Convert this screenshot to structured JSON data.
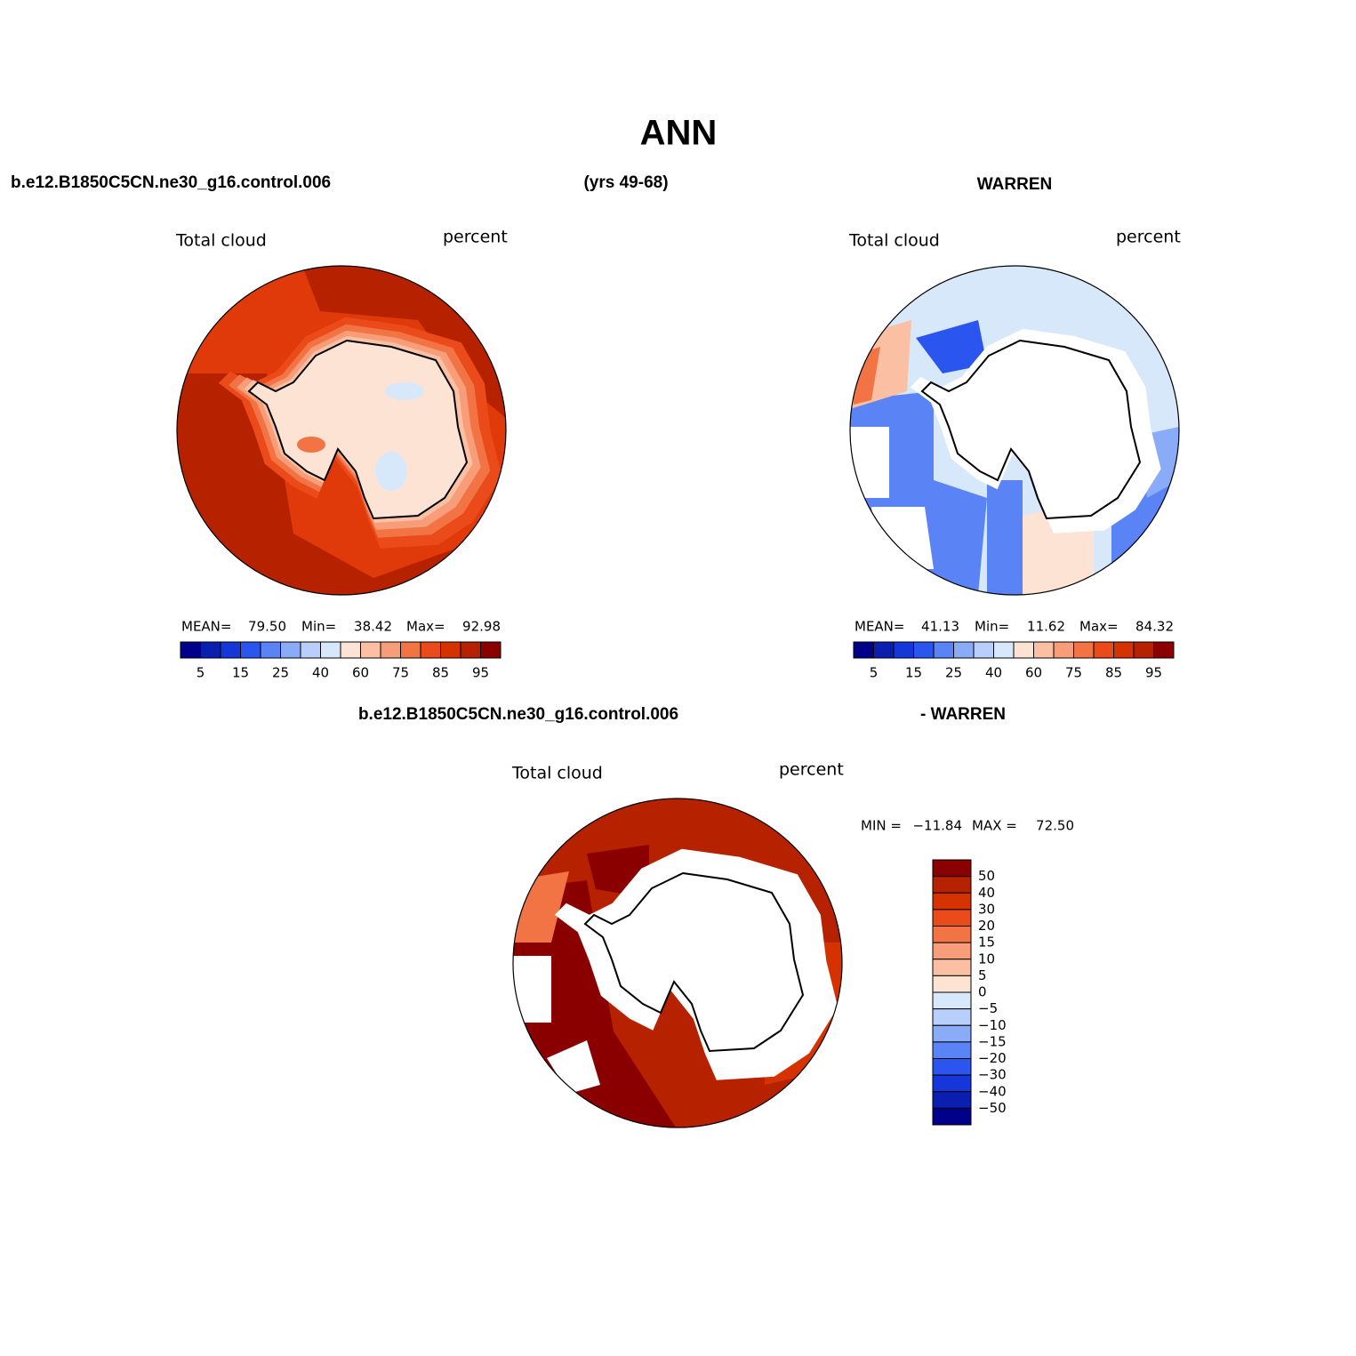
{
  "title": "ANN",
  "header": {
    "case": "b.e12.B1850C5CN.ne30_g16.control.006",
    "period": "(yrs 49-68)",
    "obs": "WARREN"
  },
  "diff_header": {
    "case": "b.e12.B1850C5CN.ne30_g16.control.006",
    "obs": "- WARREN"
  },
  "panels": [
    {
      "variable": "Total cloud",
      "units": "percent",
      "stats": [
        {
          "label": "MEAN=",
          "value": "79.50"
        },
        {
          "label": "Min=",
          "value": "38.42"
        },
        {
          "label": "Max=",
          "value": "92.98"
        }
      ],
      "colorbar": {
        "colors": [
          "#00008a",
          "#0a1fb0",
          "#1536d8",
          "#2a55ee",
          "#5a84f5",
          "#8aabf8",
          "#b8cefb",
          "#d7e8fb",
          "#fde3d4",
          "#fbc0a3",
          "#f79d79",
          "#f27445",
          "#eb4a1a",
          "#d63200",
          "#b62200",
          "#8a0000"
        ],
        "labels": [
          "5",
          "15",
          "25",
          "40",
          "60",
          "75",
          "85",
          "95"
        ]
      }
    },
    {
      "variable": "Total cloud",
      "units": "percent",
      "stats": [
        {
          "label": "MEAN=",
          "value": "41.13"
        },
        {
          "label": "Min=",
          "value": "11.62"
        },
        {
          "label": "Max=",
          "value": "84.32"
        }
      ],
      "colorbar": {
        "colors": [
          "#00008a",
          "#0a1fb0",
          "#1536d8",
          "#2a55ee",
          "#5a84f5",
          "#8aabf8",
          "#b8cefb",
          "#d7e8fb",
          "#fde3d4",
          "#fbc0a3",
          "#f79d79",
          "#f27445",
          "#eb4a1a",
          "#d63200",
          "#b62200",
          "#8a0000"
        ],
        "labels": [
          "5",
          "15",
          "25",
          "40",
          "60",
          "75",
          "85",
          "95"
        ]
      }
    }
  ],
  "diff_panel": {
    "variable": "Total cloud",
    "units": "percent",
    "stats": [
      {
        "label": "MIN =",
        "value": "−11.84"
      },
      {
        "label": "MAX =",
        "value": "72.50"
      }
    ],
    "colorbar": {
      "colors": [
        "#8a0000",
        "#b62200",
        "#d63200",
        "#eb4a1a",
        "#f27445",
        "#f79d79",
        "#fbc0a3",
        "#fde3d4",
        "#d7e8fb",
        "#b8cefb",
        "#8aabf8",
        "#5a84f5",
        "#2a55ee",
        "#1536d8",
        "#0a1fb0",
        "#00008a"
      ],
      "labels": [
        "50",
        "40",
        "30",
        "20",
        "15",
        "10",
        "5",
        "0",
        "−5",
        "−10",
        "−15",
        "−20",
        "−30",
        "−40",
        "−50"
      ]
    }
  }
}
